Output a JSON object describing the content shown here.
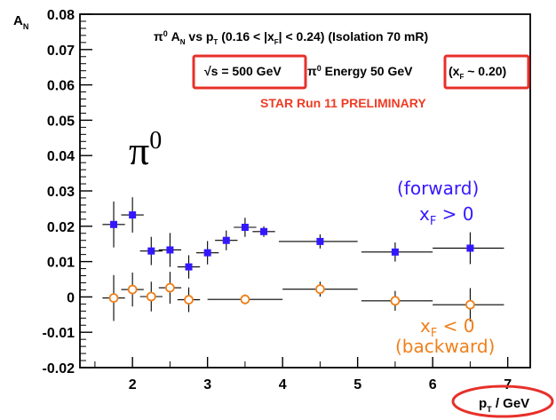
{
  "chart_data": {
    "type": "scatter",
    "xlabel": "p_T / GeV",
    "ylabel": "A_N",
    "xlim": [
      1.3,
      7.3
    ],
    "ylim": [
      -0.02,
      0.08
    ],
    "x_ticks": [
      2,
      3,
      4,
      5,
      6,
      7
    ],
    "y_ticks": [
      0.08,
      0.07,
      0.06,
      0.05,
      0.04,
      0.03,
      0.02,
      0.01,
      0,
      -0.01,
      -0.02
    ],
    "x_tick_labels": [
      "2",
      "3",
      "4",
      "5",
      "6",
      "7"
    ],
    "y_tick_labels": [
      "0.08",
      "0.07",
      "0.06",
      "0.05",
      "0.04",
      "0.03",
      "0.02",
      "0.01",
      "0",
      "-0.01",
      "-0.02"
    ],
    "series": [
      {
        "name": "forward",
        "color": "#3318ff",
        "marker": "square-filled",
        "points": [
          {
            "x": 1.75,
            "y": 0.0205,
            "xerr_low": 0.15,
            "xerr_high": 0.15,
            "yerr_low": 0.0065,
            "yerr_high": 0.0065
          },
          {
            "x": 2.0,
            "y": 0.0232,
            "xerr_low": 0.15,
            "xerr_high": 0.15,
            "yerr_low": 0.005,
            "yerr_high": 0.005
          },
          {
            "x": 2.25,
            "y": 0.013,
            "xerr_low": 0.15,
            "xerr_high": 0.15,
            "yerr_low": 0.004,
            "yerr_high": 0.004
          },
          {
            "x": 2.5,
            "y": 0.0133,
            "xerr_low": 0.15,
            "xerr_high": 0.15,
            "yerr_low": 0.0048,
            "yerr_high": 0.0048
          },
          {
            "x": 2.75,
            "y": 0.0085,
            "xerr_low": 0.15,
            "xerr_high": 0.15,
            "yerr_low": 0.0033,
            "yerr_high": 0.0033
          },
          {
            "x": 3.0,
            "y": 0.0125,
            "xerr_low": 0.15,
            "xerr_high": 0.15,
            "yerr_low": 0.0033,
            "yerr_high": 0.0033
          },
          {
            "x": 3.25,
            "y": 0.016,
            "xerr_low": 0.15,
            "xerr_high": 0.15,
            "yerr_low": 0.0028,
            "yerr_high": 0.0028
          },
          {
            "x": 3.5,
            "y": 0.0197,
            "xerr_low": 0.15,
            "xerr_high": 0.15,
            "yerr_low": 0.0027,
            "yerr_high": 0.0027
          },
          {
            "x": 3.75,
            "y": 0.0185,
            "xerr_low": 0.15,
            "xerr_high": 0.15,
            "yerr_low": 0.0015,
            "yerr_high": 0.0015
          },
          {
            "x": 4.5,
            "y": 0.0157,
            "xerr_low": 0.55,
            "xerr_high": 0.5,
            "yerr_low": 0.002,
            "yerr_high": 0.002
          },
          {
            "x": 5.5,
            "y": 0.0127,
            "xerr_low": 0.45,
            "xerr_high": 0.5,
            "yerr_low": 0.0027,
            "yerr_high": 0.0027
          },
          {
            "x": 6.5,
            "y": 0.0138,
            "xerr_low": 0.5,
            "xerr_high": 0.45,
            "yerr_low": 0.0045,
            "yerr_high": 0.0045
          }
        ]
      },
      {
        "name": "backward",
        "color": "#ef7f1a",
        "marker": "circle-open",
        "points": [
          {
            "x": 1.75,
            "y": -0.0003,
            "xerr_low": 0.15,
            "xerr_high": 0.15,
            "yerr_low": 0.0065,
            "yerr_high": 0.0065
          },
          {
            "x": 2.0,
            "y": 0.0021,
            "xerr_low": 0.15,
            "xerr_high": 0.15,
            "yerr_low": 0.0048,
            "yerr_high": 0.0048
          },
          {
            "x": 2.25,
            "y": 0.0001,
            "xerr_low": 0.15,
            "xerr_high": 0.15,
            "yerr_low": 0.0042,
            "yerr_high": 0.0042
          },
          {
            "x": 2.5,
            "y": 0.0026,
            "xerr_low": 0.15,
            "xerr_high": 0.15,
            "yerr_low": 0.0045,
            "yerr_high": 0.0045
          },
          {
            "x": 2.75,
            "y": -0.0008,
            "xerr_low": 0.15,
            "xerr_high": 0.15,
            "yerr_low": 0.0035,
            "yerr_high": 0.0035
          },
          {
            "x": 3.5,
            "y": -0.0007,
            "xerr_low": 0.5,
            "xerr_high": 0.5,
            "yerr_low": 0.0014,
            "yerr_high": 0.0014
          },
          {
            "x": 4.5,
            "y": 0.0022,
            "xerr_low": 0.5,
            "xerr_high": 0.5,
            "yerr_low": 0.0021,
            "yerr_high": 0.0021
          },
          {
            "x": 5.5,
            "y": -0.0011,
            "xerr_low": 0.45,
            "xerr_high": 0.5,
            "yerr_low": 0.0028,
            "yerr_high": 0.0028
          },
          {
            "x": 6.5,
            "y": -0.0022,
            "xerr_low": 0.5,
            "xerr_high": 0.45,
            "yerr_low": 0.0047,
            "yerr_high": 0.0047
          }
        ]
      }
    ],
    "annotations": {
      "header_line1": "π⁰ A_N vs p_T (0.16 < |x_F| < 0.24) (Isolation 70 mR)",
      "energy_box": "√s = 500 GeV",
      "energy_text": "π⁰ Energy 50 GeV",
      "xf_box": "(x_F ~ 0.20)",
      "preliminary": "STAR Run 11 PRELIMINARY",
      "pi_label": "π0",
      "forward_label": "(forward)",
      "forward_condition": "x_F > 0",
      "backward_condition": "x_F < 0",
      "backward_label": "(backward)"
    }
  },
  "colors": {
    "forward": "#3318ff",
    "backward": "#ef7f1a",
    "highlight": "#e7302a",
    "preliminary": "#ef3b24",
    "axis": "#000000"
  }
}
